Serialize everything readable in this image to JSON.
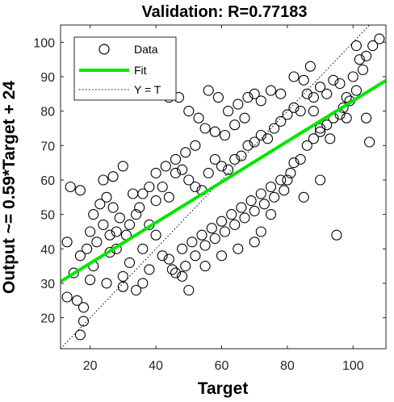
{
  "chart_data": {
    "type": "scatter",
    "title": "Validation: R=0.77183",
    "xlabel": "Target",
    "ylabel": "Output ~= 0.59*Target + 24",
    "xlim": [
      11,
      110
    ],
    "ylim": [
      11,
      105
    ],
    "xticks": [
      20,
      40,
      60,
      80,
      100
    ],
    "yticks": [
      20,
      30,
      40,
      50,
      60,
      70,
      80,
      90,
      100
    ],
    "x_tick_labels": [
      "20",
      "40",
      "60",
      "80",
      "100"
    ],
    "y_tick_labels": [
      "20",
      "30",
      "40",
      "50",
      "60",
      "70",
      "80",
      "90",
      "100"
    ],
    "grid": false,
    "legend": {
      "placement": "top-left",
      "entries": [
        "Data",
        "Fit",
        "Y = T"
      ]
    },
    "colors": {
      "data": "#000000",
      "fit": "#00e600",
      "identity": "#000000"
    },
    "fit_line": {
      "slope": 0.59,
      "intercept": 24
    },
    "identity_line": {
      "slope": 1,
      "intercept": 0
    },
    "series": [
      {
        "name": "Data",
        "points": [
          [
            17,
            15
          ],
          [
            18,
            19
          ],
          [
            18,
            23
          ],
          [
            13,
            26
          ],
          [
            16,
            25
          ],
          [
            20,
            31
          ],
          [
            21,
            35
          ],
          [
            17,
            38
          ],
          [
            15,
            33
          ],
          [
            13,
            42
          ],
          [
            14,
            58
          ],
          [
            17,
            57
          ],
          [
            21,
            50
          ],
          [
            24,
            60
          ],
          [
            27,
            61
          ],
          [
            30,
            64
          ],
          [
            33,
            56
          ],
          [
            35,
            52
          ],
          [
            28,
            45
          ],
          [
            26,
            39
          ],
          [
            25,
            30
          ],
          [
            30,
            29
          ],
          [
            32,
            36
          ],
          [
            36,
            40
          ],
          [
            38,
            47
          ],
          [
            40,
            54
          ],
          [
            42,
            58
          ],
          [
            44,
            55
          ],
          [
            46,
            62
          ],
          [
            48,
            63
          ],
          [
            50,
            60
          ],
          [
            52,
            58
          ],
          [
            54,
            57
          ],
          [
            56,
            62
          ],
          [
            58,
            66
          ],
          [
            60,
            64
          ],
          [
            62,
            63
          ],
          [
            64,
            66
          ],
          [
            66,
            67
          ],
          [
            68,
            70
          ],
          [
            70,
            71
          ],
          [
            72,
            73
          ],
          [
            74,
            72
          ],
          [
            76,
            75
          ],
          [
            78,
            77
          ],
          [
            80,
            79
          ],
          [
            82,
            81
          ],
          [
            84,
            80
          ],
          [
            86,
            85
          ],
          [
            88,
            84
          ],
          [
            90,
            87
          ],
          [
            92,
            85
          ],
          [
            94,
            89
          ],
          [
            96,
            88
          ],
          [
            98,
            84
          ],
          [
            100,
            90
          ],
          [
            102,
            95
          ],
          [
            104,
            96
          ],
          [
            106,
            99
          ],
          [
            108,
            101
          ],
          [
            101,
            99
          ],
          [
            103,
            92
          ],
          [
            105,
            71
          ],
          [
            104,
            78
          ],
          [
            95,
            44
          ],
          [
            90,
            60
          ],
          [
            85,
            55
          ],
          [
            80,
            60
          ],
          [
            82,
            65
          ],
          [
            75,
            50
          ],
          [
            72,
            45
          ],
          [
            70,
            42
          ],
          [
            65,
            40
          ],
          [
            60,
            38
          ],
          [
            55,
            35
          ],
          [
            50,
            28
          ],
          [
            48,
            32
          ],
          [
            45,
            34
          ],
          [
            42,
            38
          ],
          [
            40,
            44
          ],
          [
            38,
            34
          ],
          [
            36,
            30
          ],
          [
            34,
            28
          ],
          [
            30,
            32
          ],
          [
            28,
            40
          ],
          [
            26,
            44
          ],
          [
            24,
            47
          ],
          [
            22,
            42
          ],
          [
            20,
            45
          ],
          [
            19,
            40
          ],
          [
            44,
            84
          ],
          [
            47,
            84
          ],
          [
            50,
            80
          ],
          [
            53,
            78
          ],
          [
            56,
            86
          ],
          [
            59,
            84
          ],
          [
            62,
            80
          ],
          [
            65,
            82
          ],
          [
            68,
            84
          ],
          [
            70,
            85
          ],
          [
            72,
            83
          ],
          [
            75,
            86
          ],
          [
            78,
            85
          ],
          [
            82,
            90
          ],
          [
            85,
            89
          ],
          [
            87,
            93
          ],
          [
            88,
            80
          ],
          [
            90,
            75
          ],
          [
            93,
            72
          ],
          [
            96,
            79
          ],
          [
            98,
            78
          ],
          [
            55,
            75
          ],
          [
            58,
            74
          ],
          [
            61,
            73
          ],
          [
            64,
            76
          ],
          [
            67,
            78
          ],
          [
            52,
            70
          ],
          [
            49,
            68
          ],
          [
            46,
            66
          ],
          [
            43,
            64
          ],
          [
            40,
            62
          ],
          [
            38,
            58
          ],
          [
            36,
            56
          ],
          [
            34,
            50
          ],
          [
            32,
            47
          ],
          [
            31,
            44
          ],
          [
            29,
            49
          ],
          [
            27,
            52
          ],
          [
            25,
            55
          ],
          [
            23,
            53
          ],
          [
            48,
            40
          ],
          [
            51,
            42
          ],
          [
            54,
            44
          ],
          [
            57,
            46
          ],
          [
            60,
            48
          ],
          [
            63,
            50
          ],
          [
            66,
            52
          ],
          [
            69,
            54
          ],
          [
            72,
            56
          ],
          [
            75,
            58
          ],
          [
            78,
            60
          ],
          [
            81,
            62
          ],
          [
            84,
            66
          ],
          [
            86,
            70
          ],
          [
            88,
            72
          ],
          [
            90,
            74
          ],
          [
            92,
            76
          ],
          [
            94,
            78
          ],
          [
            97,
            81
          ],
          [
            99,
            83
          ],
          [
            101,
            86
          ],
          [
            44,
            37
          ],
          [
            46,
            33
          ],
          [
            49,
            35
          ],
          [
            52,
            38
          ],
          [
            55,
            41
          ],
          [
            58,
            43
          ],
          [
            61,
            45
          ],
          [
            64,
            47
          ],
          [
            67,
            49
          ],
          [
            70,
            51
          ],
          [
            73,
            53
          ],
          [
            76,
            55
          ],
          [
            79,
            57
          ]
        ]
      }
    ]
  }
}
